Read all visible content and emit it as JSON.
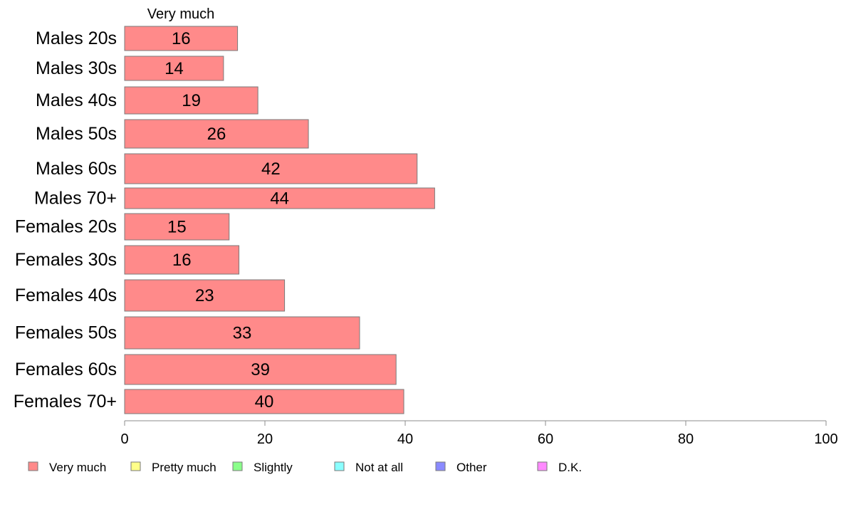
{
  "chart_data": {
    "type": "bar",
    "orientation": "horizontal",
    "stacked": true,
    "series_header": "Very much",
    "categories": [
      "Males 20s",
      "Males 30s",
      "Males 40s",
      "Males 50s",
      "Males 60s",
      "Males 70+",
      "Females 20s",
      "Females 30s",
      "Females 40s",
      "Females 50s",
      "Females 60s",
      "Females 70+"
    ],
    "series": [
      {
        "name": "Very much",
        "color": "#ff8a8a",
        "values": [
          16.1,
          14.1,
          19.0,
          26.2,
          41.7,
          44.2,
          14.9,
          16.3,
          22.8,
          33.5,
          38.7,
          39.8
        ]
      }
    ],
    "data_labels": [
      "16",
      "14",
      "19",
      "26",
      "42",
      "44",
      "15",
      "16",
      "23",
      "33",
      "39",
      "40"
    ],
    "xlim": [
      0,
      100
    ],
    "xticks": [
      "0",
      "20",
      "40",
      "60",
      "80",
      "100"
    ],
    "grid": false,
    "legend": {
      "placement": "bottom",
      "items": [
        {
          "label": "Very much",
          "color": "#ff8a8a"
        },
        {
          "label": "Pretty much",
          "color": "#ffff8a"
        },
        {
          "label": "Slightly",
          "color": "#8aff8a"
        },
        {
          "label": "Not at all",
          "color": "#8affff"
        },
        {
          "label": "Other",
          "color": "#8a8aff"
        },
        {
          "label": "D.K.",
          "color": "#ff8aff"
        }
      ]
    }
  }
}
